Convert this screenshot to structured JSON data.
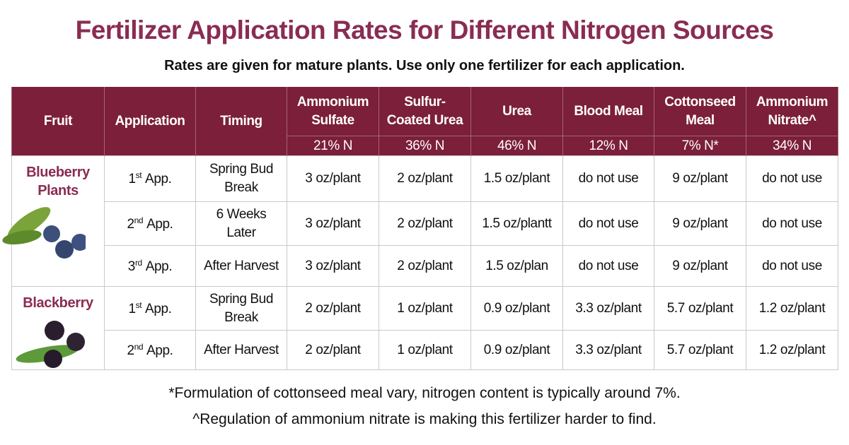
{
  "title": "Fertilizer Application Rates for Different Nitrogen Sources",
  "subtitle": "Rates are given for mature plants. Use only one fertilizer for each application.",
  "table": {
    "columns": [
      {
        "lines": [
          "Fruit"
        ]
      },
      {
        "lines": [
          "Application"
        ]
      },
      {
        "lines": [
          "Timing"
        ]
      },
      {
        "lines": [
          "Ammonium",
          "Sulfate"
        ],
        "nitrogen": "21% N"
      },
      {
        "lines": [
          "Sulfur-",
          "Coated Urea"
        ],
        "nitrogen": "36% N"
      },
      {
        "lines": [
          "Urea"
        ],
        "nitrogen": "46% N"
      },
      {
        "lines": [
          "Blood Meal"
        ],
        "nitrogen": "12% N"
      },
      {
        "lines": [
          "Cottonseed",
          "Meal"
        ],
        "nitrogen": "7% N*"
      },
      {
        "lines": [
          "Ammonium",
          "Nitrate^"
        ],
        "nitrogen": "34% N"
      }
    ],
    "groups": [
      {
        "fruit": [
          "Blueberry",
          "Plants"
        ],
        "rows": [
          {
            "application": {
              "number": "1",
              "suffix": "st",
              "label": "App."
            },
            "timing": [
              "Spring Bud",
              "Break"
            ],
            "rates": [
              "3 oz/plant",
              "2 oz/plant",
              "1.5 oz/plant",
              "do not use",
              "9 oz/plant",
              "do not use"
            ]
          },
          {
            "application": {
              "number": "2",
              "suffix": "nd",
              "label": "App."
            },
            "timing": [
              "6 Weeks",
              "Later"
            ],
            "rates": [
              "3 oz/plant",
              "2 oz/plant",
              "1.5 oz/plantt",
              "do not use",
              "9 oz/plant",
              "do not use"
            ]
          },
          {
            "application": {
              "number": "3",
              "suffix": "rd",
              "label": "App."
            },
            "timing": [
              "After Harvest"
            ],
            "rates": [
              "3 oz/plant",
              "2 oz/plant",
              "1.5 oz/plan",
              "do not use",
              "9 oz/plant",
              "do not use"
            ]
          }
        ]
      },
      {
        "fruit": [
          "Blackberry"
        ],
        "rows": [
          {
            "application": {
              "number": "1",
              "suffix": "st",
              "label": "App."
            },
            "timing": [
              "Spring Bud",
              "Break"
            ],
            "rates": [
              "2 oz/plant",
              "1 oz/plant",
              "0.9 oz/plant",
              "3.3 oz/plant",
              "5.7 oz/plant",
              "1.2 oz/plant"
            ]
          },
          {
            "application": {
              "number": "2",
              "suffix": "nd",
              "label": "App."
            },
            "timing": [
              "After Harvest"
            ],
            "rates": [
              "2 oz/plant",
              "1 oz/plant",
              "0.9 oz/plant",
              "3.3 oz/plant",
              "5.7 oz/plant",
              "1.2 oz/plant"
            ]
          }
        ]
      }
    ]
  },
  "footnotes": [
    "*Formulation of cottonseed meal vary, nitrogen content is typically around 7%.",
    "^Regulation of ammonium nitrate is making this fertilizer harder to find."
  ]
}
